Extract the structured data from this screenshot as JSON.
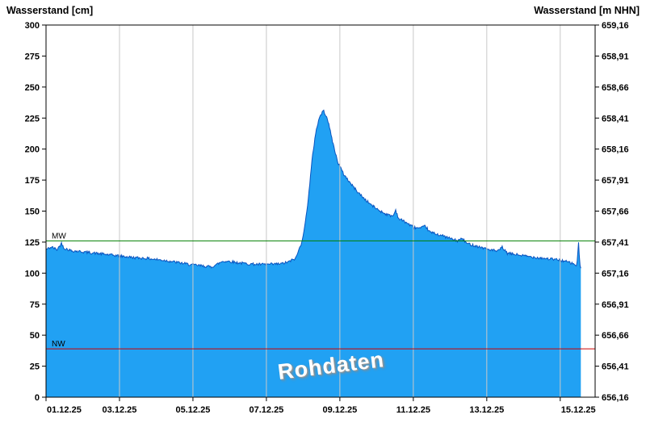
{
  "header": {
    "left_axis_title": "Wasserstand [cm]",
    "right_axis_title": "Wasserstand [m NHN]"
  },
  "watermark": "Rohdaten",
  "chart_data": {
    "type": "area",
    "title": "",
    "series": [
      {
        "name": "Wasserstand Rohdaten",
        "fill_color": "#21A1F3",
        "line_color": "#0A55C0",
        "points": [
          [
            0,
            119
          ],
          [
            0.15,
            121
          ],
          [
            0.3,
            119
          ],
          [
            0.42,
            124
          ],
          [
            0.5,
            120
          ],
          [
            0.7,
            118
          ],
          [
            0.9,
            117.5
          ],
          [
            1.2,
            116.5
          ],
          [
            1.5,
            115.5
          ],
          [
            1.8,
            114.5
          ],
          [
            2.1,
            113.5
          ],
          [
            2.4,
            112.5
          ],
          [
            2.7,
            112
          ],
          [
            3.0,
            111
          ],
          [
            3.3,
            110
          ],
          [
            3.6,
            108.5
          ],
          [
            3.9,
            107
          ],
          [
            4.2,
            106
          ],
          [
            4.5,
            105
          ],
          [
            4.65,
            107
          ],
          [
            4.8,
            109.5
          ],
          [
            5.0,
            109.5
          ],
          [
            5.2,
            108.5
          ],
          [
            5.5,
            107.5
          ],
          [
            5.8,
            107
          ],
          [
            6.1,
            107
          ],
          [
            6.4,
            107.5
          ],
          [
            6.6,
            109
          ],
          [
            6.8,
            112
          ],
          [
            6.95,
            124
          ],
          [
            7.05,
            138
          ],
          [
            7.15,
            163
          ],
          [
            7.25,
            193
          ],
          [
            7.35,
            215
          ],
          [
            7.45,
            226
          ],
          [
            7.55,
            231
          ],
          [
            7.65,
            226
          ],
          [
            7.75,
            213
          ],
          [
            7.85,
            200
          ],
          [
            7.95,
            189
          ],
          [
            8.1,
            180
          ],
          [
            8.3,
            172
          ],
          [
            8.5,
            165
          ],
          [
            8.7,
            159
          ],
          [
            8.9,
            154
          ],
          [
            9.1,
            150
          ],
          [
            9.3,
            147
          ],
          [
            9.45,
            146
          ],
          [
            9.52,
            151
          ],
          [
            9.6,
            144
          ],
          [
            9.8,
            141
          ],
          [
            10.0,
            137
          ],
          [
            10.2,
            136
          ],
          [
            10.33,
            138
          ],
          [
            10.45,
            133
          ],
          [
            10.7,
            131
          ],
          [
            11.0,
            128
          ],
          [
            11.2,
            126
          ],
          [
            11.33,
            128
          ],
          [
            11.45,
            124
          ],
          [
            11.7,
            122
          ],
          [
            12.0,
            119.5
          ],
          [
            12.3,
            117.5
          ],
          [
            12.42,
            121
          ],
          [
            12.55,
            116
          ],
          [
            12.8,
            115
          ],
          [
            13.1,
            113.5
          ],
          [
            13.4,
            112.5
          ],
          [
            13.7,
            111.5
          ],
          [
            14.0,
            110.5
          ],
          [
            14.2,
            109
          ],
          [
            14.35,
            107.5
          ],
          [
            14.45,
            106
          ],
          [
            14.5,
            124
          ],
          [
            14.53,
            108
          ],
          [
            14.56,
            104
          ]
        ]
      }
    ],
    "x_domain_days": [
      0,
      14.95
    ],
    "x_ticks": [
      {
        "label": "01.12.25",
        "day": 0
      },
      {
        "label": "03.12.25",
        "day": 2
      },
      {
        "label": "05.12.25",
        "day": 4
      },
      {
        "label": "07.12.25",
        "day": 6
      },
      {
        "label": "09.12.25",
        "day": 8
      },
      {
        "label": "11.12.25",
        "day": 10
      },
      {
        "label": "13.12.25",
        "day": 12
      },
      {
        "label": "15.12.25",
        "day": 14
      }
    ],
    "left_axis": {
      "title": "Wasserstand [cm]",
      "min": 0,
      "max": 300,
      "ticks": [
        0,
        25,
        50,
        75,
        100,
        125,
        150,
        175,
        200,
        225,
        250,
        275,
        300
      ]
    },
    "right_axis": {
      "title": "Wasserstand [m NHN]",
      "tick_labels_top_to_bottom": [
        "659,16",
        "658,91",
        "658,66",
        "658,41",
        "658,16",
        "657,91",
        "657,66",
        "657,41",
        "657,16",
        "656,91",
        "656,66",
        "656,41",
        "656,16"
      ]
    },
    "reference_lines": [
      {
        "label": "MW",
        "value_cm": 126,
        "color": "#007F00"
      },
      {
        "label": "NW",
        "value_cm": 39,
        "color": "#CC0000"
      }
    ],
    "grid": {
      "vertical_at_days": [
        2,
        4,
        6,
        8,
        10,
        12,
        14
      ],
      "color": "#C8C8C8"
    },
    "noise_amplitude_cm": 1.1
  }
}
